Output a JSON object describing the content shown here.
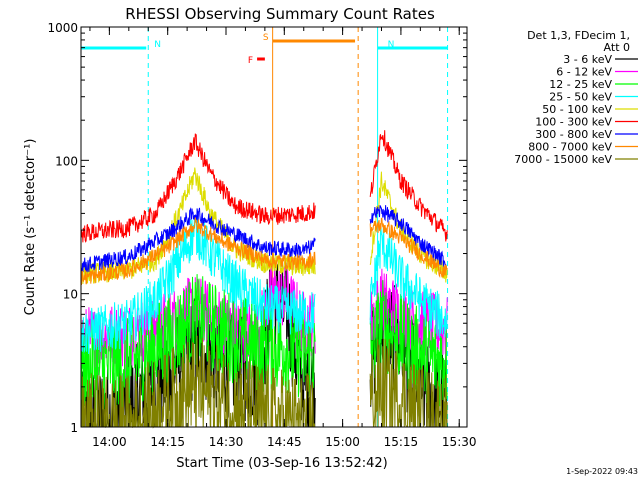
{
  "chart_data": {
    "type": "line",
    "title": "RHESSI Observing Summary Count Rates",
    "xlabel": "Start Time (03-Sep-16 13:52:42)",
    "ylabel": "Count Rate (s⁻¹ detector⁻¹)",
    "y_scale": "log",
    "ylim": [
      1,
      1000
    ],
    "xlim": [
      "13:52:42",
      "15:32:00"
    ],
    "x_ticks": [
      "14:00",
      "14:15",
      "14:30",
      "14:45",
      "15:00",
      "15:15",
      "15:30"
    ],
    "y_ticks": [
      "1",
      "10",
      "100",
      "1000"
    ],
    "legend_position": "right",
    "legend_header": [
      "Det 1,3, FDecim 1,",
      "Att 0"
    ],
    "grid": false,
    "data_gaps": [
      [
        "14:53",
        "15:07"
      ]
    ],
    "series": [
      {
        "name": "3 - 6 keV",
        "color": "#000000",
        "x": [
          "13:52",
          "14:05",
          "14:15",
          "14:22",
          "14:30",
          "14:38",
          "14:42",
          "14:46",
          "14:50",
          "15:07",
          "15:10",
          "15:15",
          "15:20",
          "15:27"
        ],
        "values": [
          1,
          1.5,
          2.5,
          4,
          3,
          2.5,
          9,
          7,
          2,
          3,
          6,
          4,
          2,
          1.5
        ]
      },
      {
        "name": "6 - 12 keV",
        "color": "#ff00ff",
        "x": [
          "13:52",
          "14:05",
          "14:15",
          "14:22",
          "14:30",
          "14:38",
          "14:42",
          "14:46",
          "14:50",
          "15:07",
          "15:10",
          "15:15",
          "15:20",
          "15:27"
        ],
        "values": [
          4.5,
          5,
          6,
          8,
          6,
          5,
          10,
          9,
          6,
          6,
          9,
          7,
          6,
          5.5
        ]
      },
      {
        "name": "12 - 25 keV",
        "color": "#00ff00",
        "x": [
          "13:52",
          "14:05",
          "14:15",
          "14:22",
          "14:30",
          "14:38",
          "14:45",
          "14:50",
          "15:07",
          "15:10",
          "15:15",
          "15:20",
          "15:27"
        ],
        "values": [
          2.8,
          3,
          4.5,
          6.5,
          5,
          4,
          4,
          3.5,
          3.5,
          6,
          4.5,
          3.5,
          3
        ]
      },
      {
        "name": "25 - 50 keV",
        "color": "#00ffff",
        "x": [
          "13:52",
          "14:05",
          "14:12",
          "14:18",
          "14:22",
          "14:26",
          "14:32",
          "14:40",
          "14:50",
          "15:07",
          "15:10",
          "15:15",
          "15:20",
          "15:27"
        ],
        "values": [
          5,
          6,
          9,
          18,
          30,
          20,
          12,
          8,
          7,
          8,
          25,
          13,
          9,
          6
        ]
      },
      {
        "name": "50 - 100 keV",
        "color": "#dddd00",
        "x": [
          "13:52",
          "14:05",
          "14:12",
          "14:18",
          "14:22",
          "14:26",
          "14:32",
          "14:40",
          "14:50",
          "15:07",
          "15:10",
          "15:15",
          "15:20",
          "15:27"
        ],
        "values": [
          14,
          15,
          18,
          40,
          80,
          40,
          22,
          17,
          16,
          17,
          70,
          30,
          20,
          14
        ]
      },
      {
        "name": "100 - 300 keV",
        "color": "#ff0000",
        "x": [
          "13:52",
          "14:05",
          "14:12",
          "14:18",
          "14:22",
          "14:26",
          "14:32",
          "14:40",
          "14:50",
          "15:07",
          "15:10",
          "15:15",
          "15:20",
          "15:27"
        ],
        "values": [
          28,
          31,
          40,
          80,
          140,
          80,
          46,
          38,
          40,
          50,
          165,
          70,
          45,
          28
        ]
      },
      {
        "name": "300 - 800 keV",
        "color": "#0000ff",
        "x": [
          "13:52",
          "14:05",
          "14:15",
          "14:22",
          "14:30",
          "14:40",
          "14:50",
          "15:07",
          "15:10",
          "15:15",
          "15:20",
          "15:27"
        ],
        "values": [
          16,
          19,
          28,
          40,
          30,
          22,
          21,
          38,
          42,
          34,
          24,
          17
        ]
      },
      {
        "name": "800 - 7000 keV",
        "color": "#ff8800",
        "x": [
          "13:52",
          "14:05",
          "14:15",
          "14:22",
          "14:30",
          "14:40",
          "14:50",
          "15:07",
          "15:10",
          "15:15",
          "15:20",
          "15:27"
        ],
        "values": [
          13,
          15,
          22,
          33,
          24,
          18,
          17,
          30,
          33,
          26,
          20,
          14
        ]
      },
      {
        "name": "7000 - 15000 keV",
        "color": "#808000",
        "x": [
          "13:52",
          "14:05",
          "14:15",
          "14:22",
          "14:30",
          "14:40",
          "14:50",
          "15:07",
          "15:10",
          "15:15",
          "15:20",
          "15:27"
        ],
        "values": [
          1,
          1,
          1.5,
          2,
          1.5,
          1.2,
          1,
          1.5,
          2,
          1.6,
          1.2,
          1
        ]
      }
    ],
    "annotations": [
      {
        "label": "N",
        "kind": "night",
        "color": "#00ffff",
        "from": "13:52:42",
        "to": "14:10",
        "style": "bar + dashed end line"
      },
      {
        "label": "N",
        "kind": "night",
        "color": "#00ffff",
        "from": "15:09",
        "to": "15:27",
        "style": "solid start line + bar + dashed end line"
      },
      {
        "label": "S",
        "kind": "SAA",
        "color": "#ff8800",
        "from": "14:42",
        "to": "15:04",
        "style": "solid start line + bar + dashed end line"
      },
      {
        "label": "F",
        "kind": "flare",
        "color": "#ff0000",
        "from": "14:38",
        "to": "14:40",
        "style": "short bar"
      }
    ]
  },
  "timestamp": "1-Sep-2022 09:43"
}
